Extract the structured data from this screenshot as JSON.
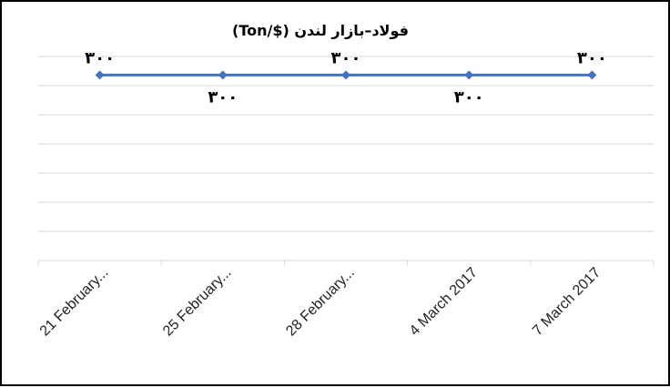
{
  "chart_data": {
    "type": "line",
    "title": "فولاد–بازار لندن ($/Ton)",
    "categories": [
      "21 February...",
      "25 February...",
      "28 February...",
      "4 March 2017",
      "7 March 2017"
    ],
    "series": [
      {
        "values": [
          300,
          300,
          300,
          300,
          300
        ],
        "data_labels": [
          "۳۰۰",
          "۳۰۰",
          "۳۰۰",
          "۳۰۰",
          "۳۰۰"
        ],
        "color": "#4472C4"
      }
    ],
    "xlabel": "",
    "ylabel": "",
    "ylim": [
      200,
      310
    ],
    "grid": true,
    "legend": "none"
  }
}
